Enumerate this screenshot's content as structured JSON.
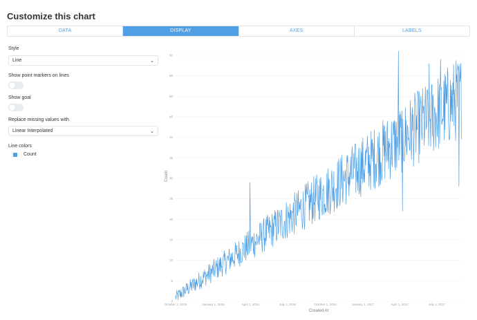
{
  "title": "Customize this chart",
  "tabs": [
    {
      "label": "DATA",
      "active": false
    },
    {
      "label": "DISPLAY",
      "active": true
    },
    {
      "label": "AXES",
      "active": false
    },
    {
      "label": "LABELS",
      "active": false
    }
  ],
  "settings": {
    "style_label": "Style",
    "style_value": "Line",
    "point_markers_label": "Show point markers on lines",
    "point_markers_on": false,
    "show_goal_label": "Show goal",
    "show_goal_on": false,
    "missing_label": "Replace missing values with",
    "missing_value": "Linear Interpolated",
    "line_colors_label": "Line colors",
    "series_name": "Count",
    "series_color": "#509ee3"
  },
  "icons": {
    "dropdown": "chevron-down-icon"
  },
  "chart_data": {
    "type": "line",
    "xlabel": "Created At",
    "ylabel": "Count",
    "x_start": "2015-10-01",
    "x_end": "2017-08-31",
    "x_ticks": [
      "October 1, 2015",
      "January 1, 2016",
      "April 1, 2016",
      "July 1, 2016",
      "October 1, 2016",
      "January 1, 2017",
      "April 1, 2017",
      "July 1, 2017"
    ],
    "y_ticks": [
      0,
      5,
      10,
      15,
      20,
      25,
      30,
      35,
      40,
      45,
      50,
      55,
      60
    ],
    "ylim": [
      0,
      61
    ],
    "grid": true,
    "trend": {
      "start": 1,
      "end": 50
    },
    "peaks": [
      {
        "date": "2016-03-31",
        "value": 29
      },
      {
        "date": "2017-03-29",
        "value": 61
      },
      {
        "date": "2017-04-08",
        "value": 22
      },
      {
        "date": "2017-06-12",
        "value": 58
      },
      {
        "date": "2017-07-10",
        "value": 59
      },
      {
        "date": "2017-08-24",
        "value": 28
      }
    ],
    "color": "#509ee3"
  }
}
